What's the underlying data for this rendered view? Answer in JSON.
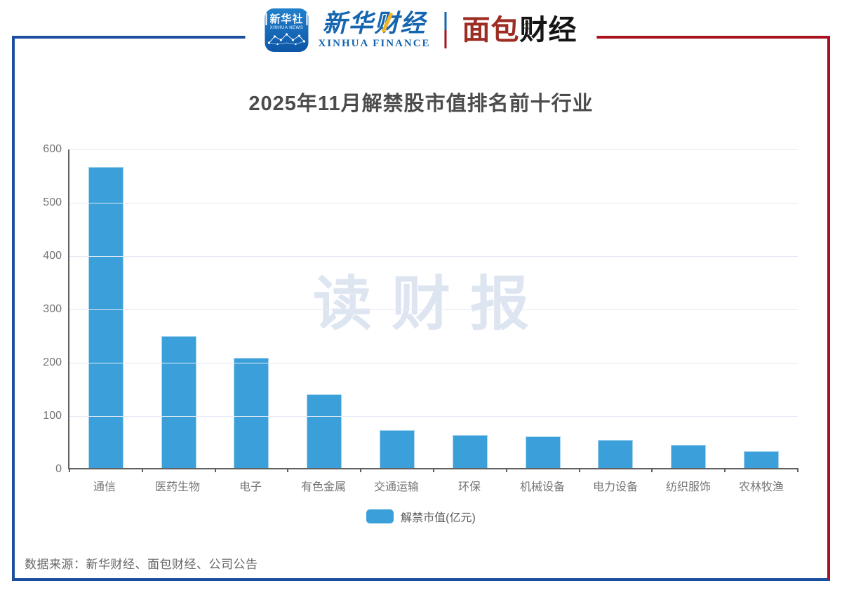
{
  "header": {
    "xinhua_news_icon": {
      "line1": "新华社",
      "line2": "XINHUA NEWS"
    },
    "xinhua_finance": {
      "cn": "新华财经",
      "en": "XINHUA FINANCE"
    },
    "mianbao": {
      "part1": "面包",
      "part2": "财经",
      "reg": "®"
    }
  },
  "watermark": "读财报",
  "chart_data": {
    "type": "bar",
    "title": "2025年11月解禁股市值排名前十行业",
    "series_name": "解禁市值(亿元)",
    "categories": [
      "通信",
      "医药生物",
      "电子",
      "有色金属",
      "交通运输",
      "环保",
      "机械设备",
      "电力设备",
      "纺织服饰",
      "农林牧渔"
    ],
    "values": [
      565,
      248,
      207,
      138,
      71,
      62,
      59,
      52,
      44,
      32
    ],
    "xlabel": "",
    "ylabel": "",
    "ylim": [
      0,
      600
    ],
    "yticks": [
      0,
      100,
      200,
      300,
      400,
      500,
      600
    ],
    "grid": true,
    "legend_position": "bottom"
  },
  "footer": {
    "source": "数据来源：新华财经、面包财经、公司公告"
  },
  "colors": {
    "frame_blue": "#1c4f9e",
    "frame_red": "#a8121f",
    "bar_color": "#3ba0d9",
    "bar_border": "#a6d4ee",
    "grid_color": "#e4e9f4",
    "axis_color": "#5f5f5f",
    "title_color": "#4c4c4c",
    "label_color": "#757575",
    "watermark_color": "#dde5f1",
    "xinhua_blue": "#1565af",
    "mianbao_red": "#9d2c23",
    "legend_text": "#5c5c5c",
    "footer_text": "#666666",
    "icon_gradient_top": "#2280cc",
    "icon_gradient_bottom": "#0d56a6",
    "accent_yellow": "#f5b524"
  }
}
